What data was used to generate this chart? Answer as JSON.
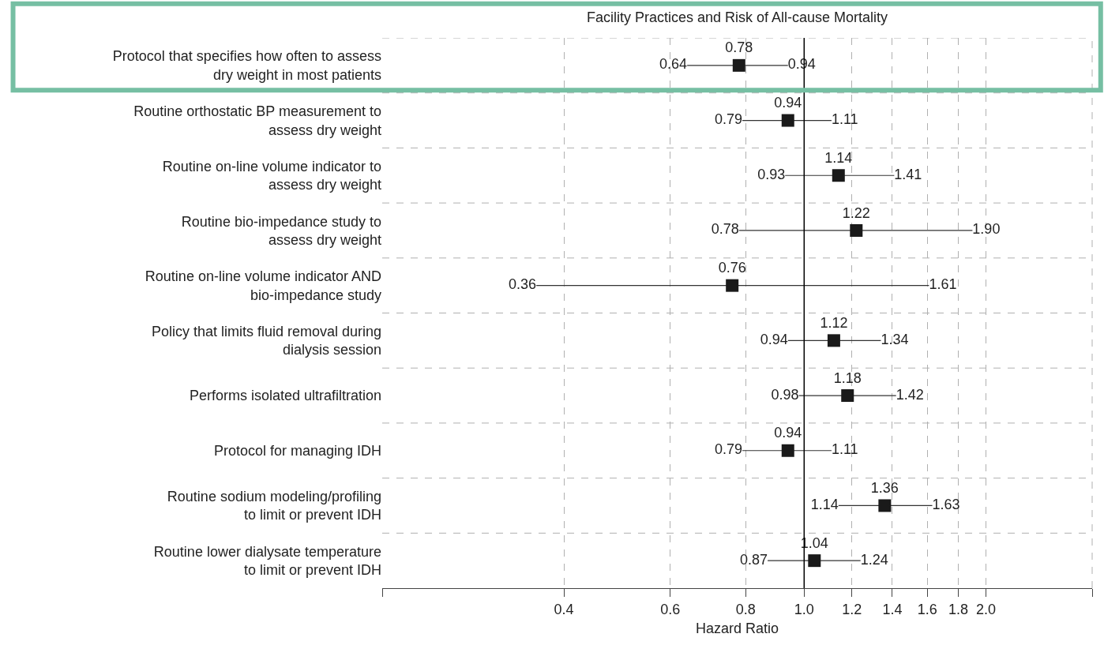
{
  "chart_data": {
    "type": "scatter",
    "orientation": "horizontal",
    "title": "Facility Practices and Risk of All-cause Mortality",
    "xlabel": "Hazard Ratio",
    "categories": [
      "Protocol that specifies how often to assess\ndry weight in most patients",
      "Routine orthostatic BP measurement to\nassess dry weight",
      "Routine on-line volume indicator to\nassess dry weight",
      "Routine bio-impedance study to\nassess dry weight",
      "Routine on-line volume indicator AND\nbio-impedance study",
      "Policy that limits fluid removal during\ndialysis session",
      "Performs isolated ultrafiltration",
      "Protocol for managing IDH",
      "Routine sodium modeling/profiling\nto limit or prevent IDH",
      "Routine lower dialysate temperature\nto limit or prevent IDH"
    ],
    "values": [
      0.78,
      0.94,
      1.14,
      1.22,
      0.76,
      1.12,
      1.18,
      0.94,
      1.36,
      1.04
    ],
    "errors": [
      [
        0.64,
        0.94
      ],
      [
        0.79,
        1.11
      ],
      [
        0.93,
        1.41
      ],
      [
        0.78,
        1.9
      ],
      [
        0.36,
        1.61
      ],
      [
        0.94,
        1.34
      ],
      [
        0.98,
        1.42
      ],
      [
        0.79,
        1.11
      ],
      [
        1.14,
        1.63
      ],
      [
        0.87,
        1.24
      ]
    ],
    "color": "#1a1a1a",
    "marker": "square",
    "data_labels": true,
    "log": "x",
    "xlim": [
      0.2,
      3.0
    ],
    "xticks": [
      {
        "value": 0.2,
        "label": null
      },
      0.4,
      0.6,
      0.8,
      {
        "value": 1.0,
        "label": "1.0"
      },
      1.2,
      1.4,
      1.6,
      1.8,
      {
        "value": 2.0,
        "label": "2.0"
      },
      {
        "value": 3.0,
        "label": null
      }
    ],
    "ref_lines": [
      {
        "axis": "x",
        "value": 1.0,
        "label": null,
        "color": "#000000",
        "line_style": "solid"
      }
    ],
    "grid": true,
    "annotations": [
      {
        "text": "0.64",
        "x": 0.64,
        "y": "Protocol that specifies how often to assess\ndry weight in most patients"
      },
      {
        "text": "0.94",
        "x": 0.94,
        "y": "Protocol that specifies how often to assess\ndry weight in most patients"
      },
      {
        "text": "0.79",
        "x": 0.79,
        "y": "Routine orthostatic BP measurement to\nassess dry weight"
      },
      {
        "text": "1.11",
        "x": 1.11,
        "y": "Routine orthostatic BP measurement to\nassess dry weight"
      },
      {
        "text": "0.93",
        "x": 0.93,
        "y": "Routine on-line volume indicator to\nassess dry weight"
      },
      {
        "text": "1.41",
        "x": 1.41,
        "y": "Routine on-line volume indicator to\nassess dry weight"
      },
      {
        "text": "0.78",
        "x": 0.78,
        "y": "Routine bio-impedance study to\nassess dry weight"
      },
      {
        "text": "1.90",
        "x": 1.9,
        "y": "Routine bio-impedance study to\nassess dry weight"
      },
      {
        "text": "0.36",
        "x": 0.36,
        "y": "Routine on-line volume indicator AND\nbio-impedance study"
      },
      {
        "text": "1.61",
        "x": 1.61,
        "y": "Routine on-line volume indicator AND\nbio-impedance study"
      },
      {
        "text": "0.94",
        "x": 0.94,
        "y": "Policy that limits fluid removal during\ndialysis session"
      },
      {
        "text": "1.34",
        "x": 1.34,
        "y": "Policy that limits fluid removal during\ndialysis session"
      },
      {
        "text": "0.98",
        "x": 0.98,
        "y": "Performs isolated ultrafiltration"
      },
      {
        "text": "1.42",
        "x": 1.42,
        "y": "Performs isolated ultrafiltration"
      },
      {
        "text": "0.79",
        "x": 0.79,
        "y": "Protocol for managing IDH"
      },
      {
        "text": "1.11",
        "x": 1.11,
        "y": "Protocol for managing IDH"
      },
      {
        "text": "1.14",
        "x": 1.14,
        "y": "Routine sodium modeling/profiling\nto limit or prevent IDH"
      },
      {
        "text": "1.63",
        "x": 1.63,
        "y": "Routine sodium modeling/profiling\nto limit or prevent IDH"
      },
      {
        "text": "0.87",
        "x": 0.87,
        "y": "Routine lower dialysate temperature\nto limit or prevent IDH"
      },
      {
        "text": "1.24",
        "x": 1.24,
        "y": "Routine lower dialysate temperature\nto limit or prevent IDH"
      }
    ]
  }
}
